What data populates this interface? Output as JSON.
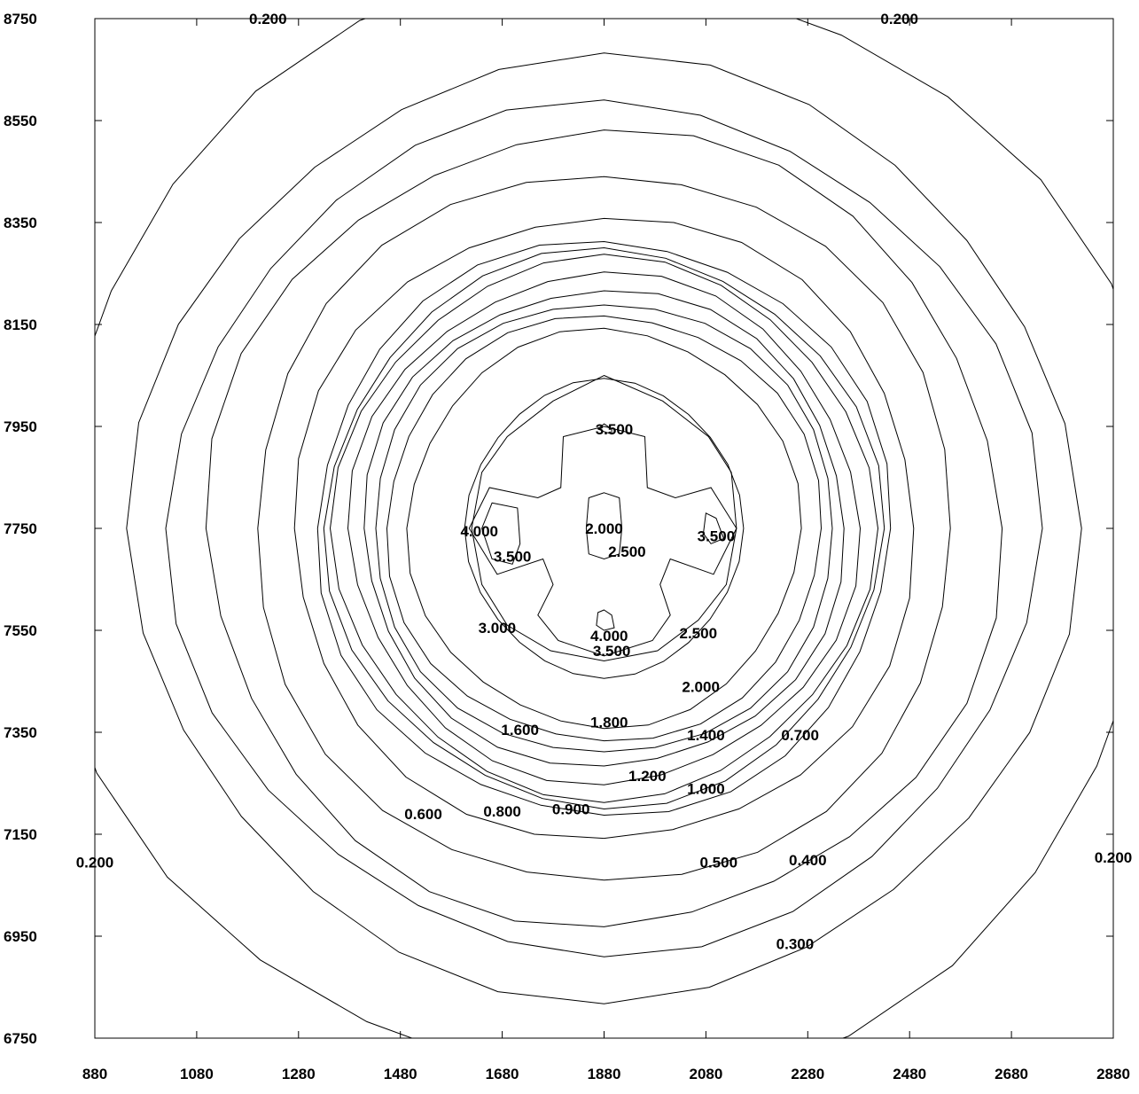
{
  "chart_data": {
    "type": "contour",
    "title": "",
    "xlabel": "",
    "ylabel": "",
    "xlim": [
      880,
      2880
    ],
    "ylim": [
      6750,
      8750
    ],
    "grid": false,
    "center": {
      "x": 1880,
      "y": 7750
    },
    "x_ticks": [
      "880",
      "1080",
      "1280",
      "1480",
      "1680",
      "1880",
      "2080",
      "2280",
      "2480",
      "2680",
      "2880"
    ],
    "y_ticks": [
      "8750",
      "8550",
      "8350",
      "8150",
      "7950",
      "7750",
      "7550",
      "7350",
      "7150",
      "6950",
      "6750"
    ],
    "levels": [
      {
        "value": "0.200",
        "rx": 1090,
        "ry": 1090
      },
      {
        "value": "0.300",
        "rx": 850,
        "ry": 830
      },
      {
        "value": "0.400",
        "rx": 925,
        "ry": 920
      },
      {
        "value": "0.500",
        "rx": 780,
        "ry": 780
      },
      {
        "value": "0.600",
        "rx": 615,
        "ry": 615
      },
      {
        "value": "0.700",
        "rx": 690,
        "ry": 700
      },
      {
        "value": "0.800",
        "rx": 565,
        "ry": 565
      },
      {
        "value": "0.900",
        "rx": 545,
        "ry": 545
      },
      {
        "value": "1.000",
        "rx": 530,
        "ry": 530
      },
      {
        "value": "1.200",
        "rx": 500,
        "ry": 500
      },
      {
        "value": "1.400",
        "rx": 475,
        "ry": 470
      },
      {
        "value": "1.600",
        "rx": 455,
        "ry": 445
      },
      {
        "value": "1.800",
        "rx": 430,
        "ry": 420
      },
      {
        "value": "2.000",
        "rx": 385,
        "ry": 390
      },
      {
        "value": "2.500",
        "rx": 270,
        "ry": 290
      }
    ],
    "contour_labels": [
      {
        "text": "0.200",
        "x": 1220,
        "y": 8750
      },
      {
        "text": "0.200",
        "x": 2460,
        "y": 8750
      },
      {
        "text": "0.200",
        "x": 880,
        "y": 7095
      },
      {
        "text": "0.200",
        "x": 2880,
        "y": 7105
      },
      {
        "text": "0.300",
        "x": 2255,
        "y": 6935
      },
      {
        "text": "0.400",
        "x": 2280,
        "y": 7100
      },
      {
        "text": "0.500",
        "x": 2105,
        "y": 7095
      },
      {
        "text": "0.600",
        "x": 1525,
        "y": 7190
      },
      {
        "text": "0.700",
        "x": 2265,
        "y": 7345
      },
      {
        "text": "0.800",
        "x": 1680,
        "y": 7195
      },
      {
        "text": "0.900",
        "x": 1815,
        "y": 7200
      },
      {
        "text": "1.000",
        "x": 2080,
        "y": 7240
      },
      {
        "text": "1.200",
        "x": 1965,
        "y": 7265
      },
      {
        "text": "1.400",
        "x": 2080,
        "y": 7345
      },
      {
        "text": "1.600",
        "x": 1715,
        "y": 7355
      },
      {
        "text": "1.800",
        "x": 1890,
        "y": 7370
      },
      {
        "text": "2.000",
        "x": 2070,
        "y": 7440
      },
      {
        "text": "2.500",
        "x": 2065,
        "y": 7545
      },
      {
        "text": "3.000",
        "x": 1670,
        "y": 7555
      },
      {
        "text": "4.000",
        "x": 1890,
        "y": 7540
      },
      {
        "text": "3.500",
        "x": 1895,
        "y": 7510
      },
      {
        "text": "4.000",
        "x": 1635,
        "y": 7745
      },
      {
        "text": "3.500",
        "x": 1700,
        "y": 7695
      },
      {
        "text": "2.000",
        "x": 1880,
        "y": 7750
      },
      {
        "text": "2.500",
        "x": 1925,
        "y": 7705
      },
      {
        "text": "3.500",
        "x": 2100,
        "y": 7735
      },
      {
        "text": "3.500",
        "x": 1900,
        "y": 7945
      }
    ]
  }
}
